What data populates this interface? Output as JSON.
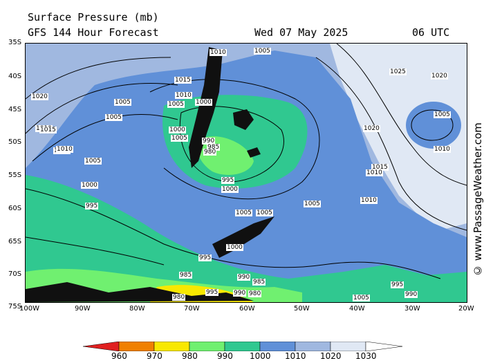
{
  "header": {
    "title": "Surface Pressure (mb)",
    "subtitle": "GFS 144 Hour Forecast",
    "date": "Wed 07 May 2025",
    "time": "06 UTC"
  },
  "credit": "© www.PassageWeather.com",
  "axes": {
    "lat_labels": [
      "35S",
      "40S",
      "45S",
      "50S",
      "55S",
      "60S",
      "65S",
      "70S",
      "75S"
    ],
    "lon_labels": [
      "100W",
      "90W",
      "80W",
      "70W",
      "60W",
      "50W",
      "40W",
      "30W",
      "20W"
    ]
  },
  "colorbar": {
    "values": [
      "960",
      "970",
      "980",
      "990",
      "1000",
      "1010",
      "1020",
      "1030"
    ],
    "colors": [
      "#e02020",
      "#f08000",
      "#f8e800",
      "#70f070",
      "#30c890",
      "#6090d8",
      "#a0b8e0",
      "#e0e8f4"
    ]
  },
  "isobar_labels": [
    {
      "text": "1010"
    },
    {
      "text": "1005"
    },
    {
      "text": "1020"
    },
    {
      "text": "1010"
    },
    {
      "text": "1010"
    },
    {
      "text": "1015"
    },
    {
      "text": "1010"
    },
    {
      "text": "1005"
    },
    {
      "text": "1000"
    },
    {
      "text": "1005"
    },
    {
      "text": "1005"
    },
    {
      "text": "1015"
    },
    {
      "text": "1010"
    },
    {
      "text": "1005"
    },
    {
      "text": "1000"
    },
    {
      "text": "995"
    },
    {
      "text": "990"
    },
    {
      "text": "985"
    },
    {
      "text": "980"
    },
    {
      "text": "1000"
    },
    {
      "text": "1005"
    },
    {
      "text": "1020"
    },
    {
      "text": "1025"
    },
    {
      "text": "1020"
    },
    {
      "text": "1005"
    },
    {
      "text": "1010"
    },
    {
      "text": "1015"
    },
    {
      "text": "1010"
    },
    {
      "text": "1010"
    },
    {
      "text": "995"
    },
    {
      "text": "1000"
    },
    {
      "text": "1005"
    },
    {
      "text": "1005"
    },
    {
      "text": "1005"
    },
    {
      "text": "1000"
    },
    {
      "text": "995"
    },
    {
      "text": "990"
    },
    {
      "text": "985"
    },
    {
      "text": "980"
    },
    {
      "text": "1005"
    },
    {
      "text": "995"
    },
    {
      "text": "990"
    },
    {
      "text": "985"
    },
    {
      "text": "980"
    },
    {
      "text": "995"
    },
    {
      "text": "990"
    }
  ]
}
